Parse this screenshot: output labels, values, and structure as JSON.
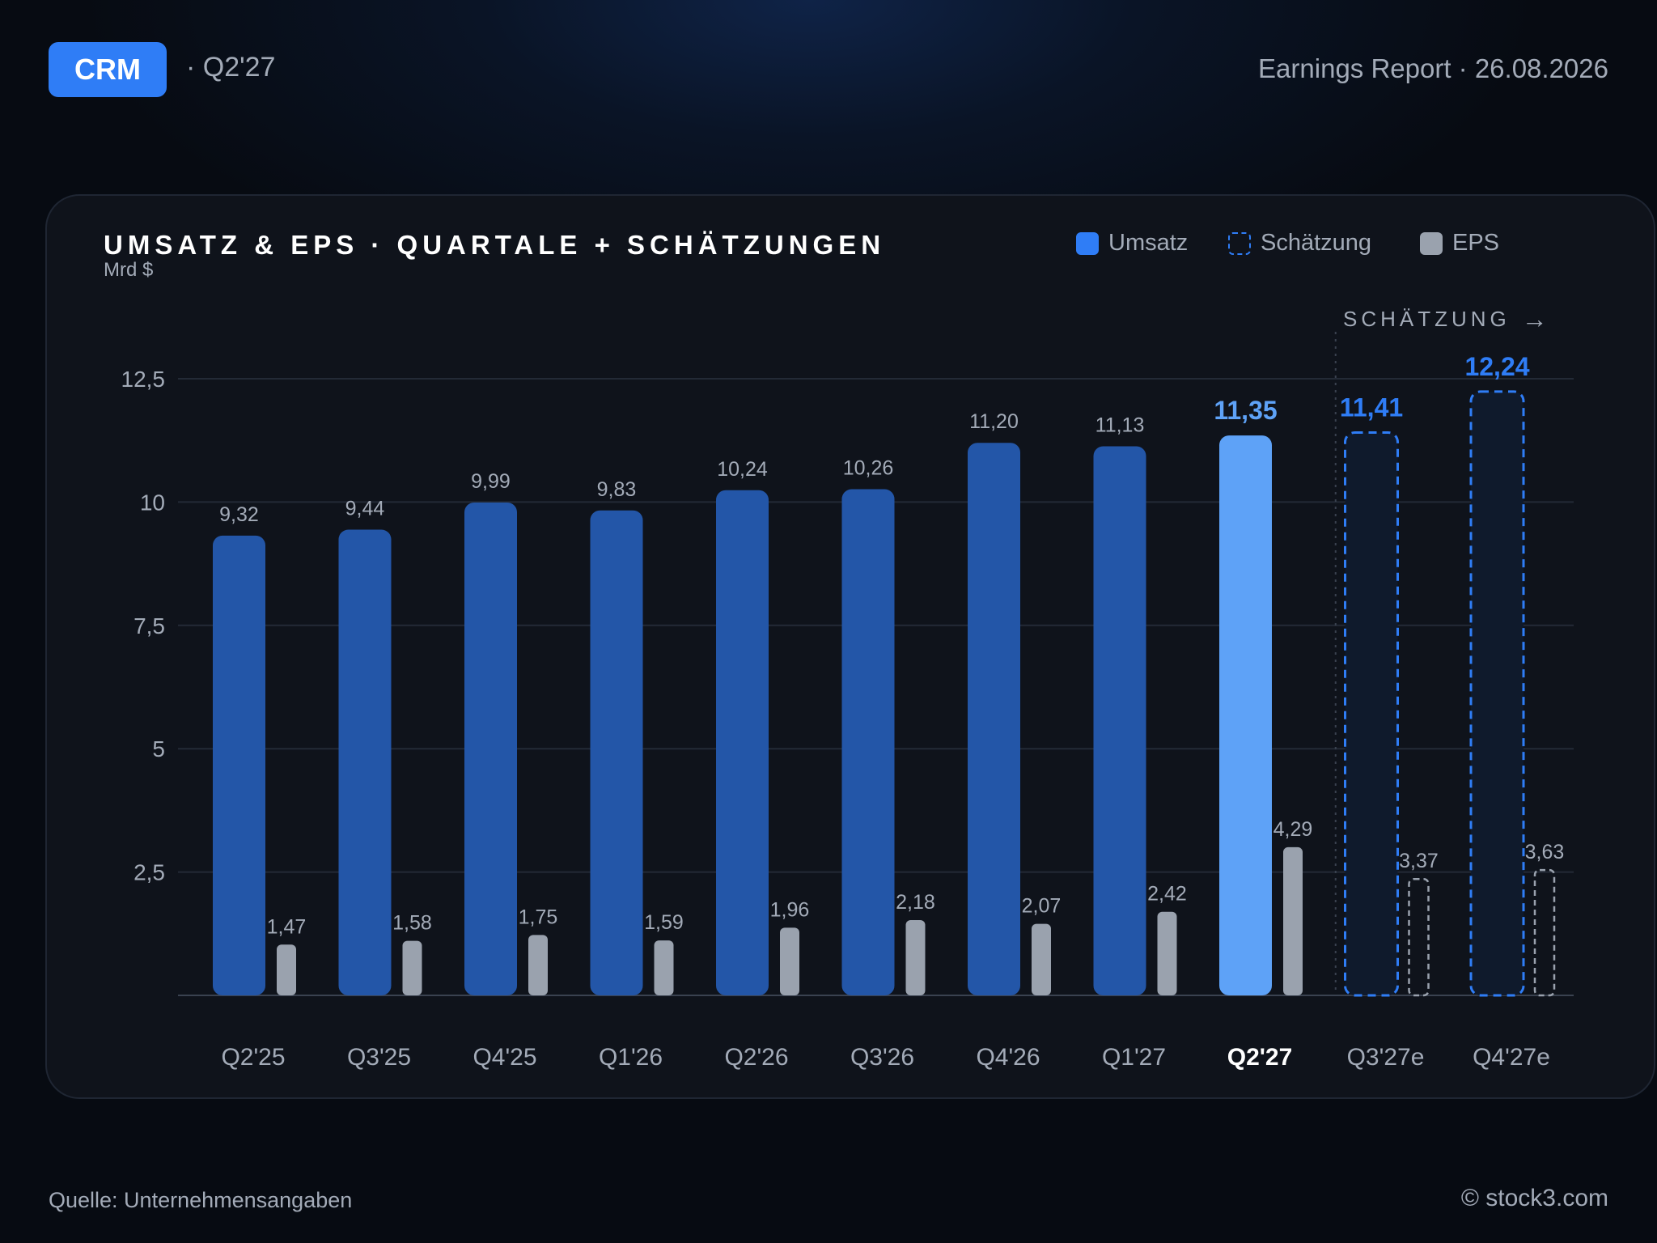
{
  "header": {
    "ticker": "CRM",
    "quarter": "· Q2'27",
    "report": "Earnings Report · 26.08.2026"
  },
  "footer": {
    "source": "Quelle: Unternehmensangaben",
    "copyright": "© stock3.com"
  },
  "colors": {
    "revenue": "#2356a8",
    "revenue_highlight": "#5ea2f7",
    "estimate": "#2f7df6",
    "eps": "#9aa2ae",
    "accent_label": "#2f7df6"
  },
  "chart_data": {
    "type": "bar",
    "title": "UMSATZ & EPS · QUARTALE + SCHÄTZUNGEN",
    "ylabel": "Mrd $",
    "ylim": [
      0,
      12.5
    ],
    "yticks": [
      2.5,
      5,
      7.5,
      10,
      12.5
    ],
    "ytick_labels": [
      "2,5",
      "5",
      "7,5",
      "10",
      "12,5"
    ],
    "grid": true,
    "legend": [
      {
        "name": "Umsatz",
        "style": "solid"
      },
      {
        "name": "Schätzung",
        "style": "dashed"
      },
      {
        "name": "EPS",
        "style": "solid"
      }
    ],
    "estimate_label": "SCHÄTZUNG",
    "categories": [
      "Q2'25",
      "Q3'25",
      "Q4'25",
      "Q1'26",
      "Q2'26",
      "Q3'26",
      "Q4'26",
      "Q1'27",
      "Q2'27",
      "Q3'27e",
      "Q4'27e"
    ],
    "highlight_index": 8,
    "estimate_start_index": 9,
    "series": [
      {
        "name": "Umsatz",
        "values": [
          9.32,
          9.44,
          9.99,
          9.83,
          10.24,
          10.26,
          11.2,
          11.13,
          11.35,
          11.41,
          12.24
        ],
        "labels": [
          "9,32",
          "9,44",
          "9,99",
          "9,83",
          "10,24",
          "10,26",
          "11,20",
          "11,13",
          "11,35",
          "11,41",
          "12,24"
        ]
      },
      {
        "name": "EPS",
        "values": [
          1.47,
          1.58,
          1.75,
          1.59,
          1.96,
          2.18,
          2.07,
          2.42,
          4.29,
          3.37,
          3.63
        ],
        "labels": [
          "1,47",
          "1,58",
          "1,75",
          "1,59",
          "1,96",
          "2,18",
          "2,07",
          "2,42",
          "4,29",
          "3,37",
          "3,63"
        ]
      }
    ]
  }
}
